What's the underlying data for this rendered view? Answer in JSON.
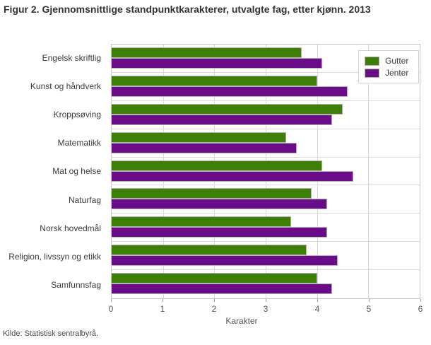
{
  "title": "Figur 2. Gjennomsnittlige standpunktkarakterer, utvalgte fag, etter kjønn. 2013",
  "source": "Kilde: Statistisk sentralbyrå.",
  "colors": {
    "gutter_green": "#3E7E05",
    "jenter_purple": "#680D87",
    "gridline": "#dcdcdc",
    "plot_border": "#c9c9c9"
  },
  "chart_data": {
    "type": "bar",
    "orientation": "horizontal",
    "title": "Figur 2. Gjennomsnittlige standpunktkarakterer, utvalgte fag, etter kjønn. 2013",
    "categories": [
      "Engelsk skriftlig",
      "Kunst og håndverk",
      "Kroppsøving",
      "Matematikk",
      "Mat og helse",
      "Naturfag",
      "Norsk hovedmål",
      "Religion, livssyn og etikk",
      "Samfunnsfag"
    ],
    "series": [
      {
        "name": "Gutter",
        "color": "#3E7E05",
        "values": [
          3.7,
          4.0,
          4.5,
          3.4,
          4.1,
          3.9,
          3.5,
          3.8,
          4.0
        ]
      },
      {
        "name": "Jenter",
        "color": "#680D87",
        "values": [
          4.1,
          4.6,
          4.3,
          3.6,
          4.7,
          4.2,
          4.2,
          4.4,
          4.3
        ]
      }
    ],
    "xlabel": "Karakter",
    "xlim": [
      0,
      6
    ],
    "xticks": [
      0,
      1,
      2,
      3,
      4,
      5,
      6
    ],
    "grid": true,
    "legend_position": "top-right"
  }
}
